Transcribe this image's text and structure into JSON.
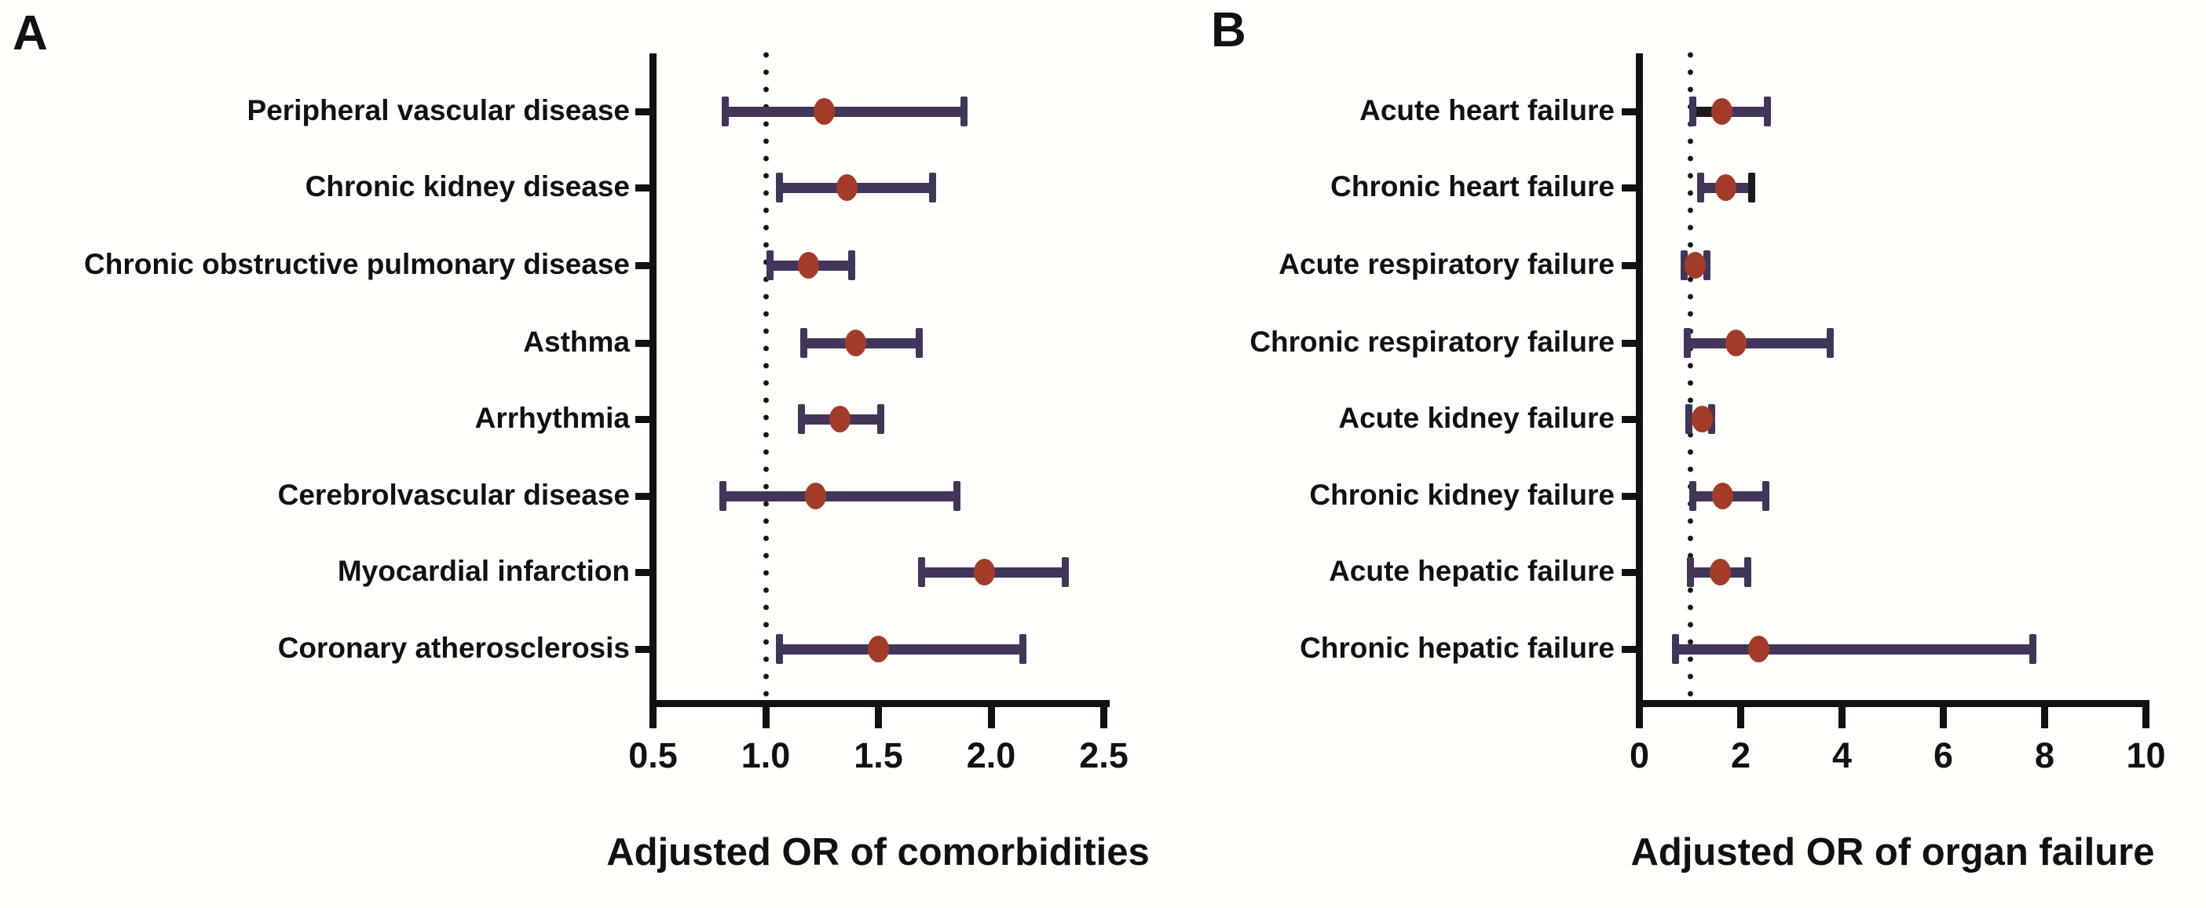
{
  "colors": {
    "bar": "#41365a",
    "cap": "#41365a",
    "dot": "#a43b28",
    "axis": "#111111",
    "background": "#fffffc",
    "artifact_black": "#1a1a1a"
  },
  "chart_data": [
    {
      "panel": "A",
      "letter": "A",
      "type": "forest",
      "title": "Adjusted OR of comorbidities",
      "xlabel": "Adjusted OR of comorbidities",
      "legend": "none",
      "grid": false,
      "axis": {
        "min": 0.5,
        "max": 2.5,
        "tick_labels": [
          "0.5",
          "1.0",
          "1.5",
          "2.0",
          "2.5"
        ],
        "tick_values": [
          0.5,
          1.0,
          1.5,
          2.0,
          2.5
        ],
        "ref_line": 1.0
      },
      "rows": [
        {
          "label": "Peripheral vascular disease",
          "or": 1.26,
          "ci_low": 0.82,
          "ci_high": 1.88
        },
        {
          "label": "Chronic kidney disease",
          "or": 1.36,
          "ci_low": 1.06,
          "ci_high": 1.74
        },
        {
          "label": "Chronic obstructive pulmonary disease",
          "or": 1.19,
          "ci_low": 1.02,
          "ci_high": 1.38
        },
        {
          "label": "Asthma",
          "or": 1.4,
          "ci_low": 1.17,
          "ci_high": 1.68
        },
        {
          "label": "Arrhythmia",
          "or": 1.33,
          "ci_low": 1.16,
          "ci_high": 1.51
        },
        {
          "label": "Cerebrolvascular disease",
          "or": 1.22,
          "ci_low": 0.81,
          "ci_high": 1.85
        },
        {
          "label": "Myocardial infarction",
          "or": 1.97,
          "ci_low": 1.69,
          "ci_high": 2.33
        },
        {
          "label": "Coronary atherosclerosis",
          "or": 1.5,
          "ci_low": 1.06,
          "ci_high": 2.14
        }
      ]
    },
    {
      "panel": "B",
      "letter": "B",
      "type": "forest",
      "title": "Adjusted OR of organ failure",
      "xlabel": "Adjusted OR of organ failure",
      "legend": "none",
      "grid": false,
      "axis": {
        "min": 0,
        "max": 10,
        "tick_labels": [
          "0",
          "2",
          "4",
          "6",
          "8",
          "10"
        ],
        "tick_values": [
          0,
          2,
          4,
          6,
          8,
          10
        ],
        "ref_line": 1.0
      },
      "rows": [
        {
          "label": "Acute heart failure",
          "or": 1.63,
          "ci_low": 1.05,
          "ci_high": 2.52,
          "black_segment": [
            1.08,
            1.63
          ]
        },
        {
          "label": "Chronic heart failure",
          "or": 1.7,
          "ci_low": 1.21,
          "ci_high": 2.21,
          "black_right_cap": true
        },
        {
          "label": "Acute respiratory failure",
          "or": 1.1,
          "ci_low": 0.88,
          "ci_high": 1.34
        },
        {
          "label": "Chronic respiratory failure",
          "or": 1.9,
          "ci_low": 0.95,
          "ci_high": 3.76
        },
        {
          "label": "Acute kidney failure",
          "or": 1.24,
          "ci_low": 0.97,
          "ci_high": 1.42
        },
        {
          "label": "Chronic kidney failure",
          "or": 1.65,
          "ci_low": 1.06,
          "ci_high": 2.5
        },
        {
          "label": "Acute hepatic failure",
          "or": 1.6,
          "ci_low": 1.01,
          "ci_high": 2.14
        },
        {
          "label": "Chronic hepatic failure",
          "or": 2.36,
          "ci_low": 0.72,
          "ci_high": 7.76
        }
      ]
    }
  ]
}
